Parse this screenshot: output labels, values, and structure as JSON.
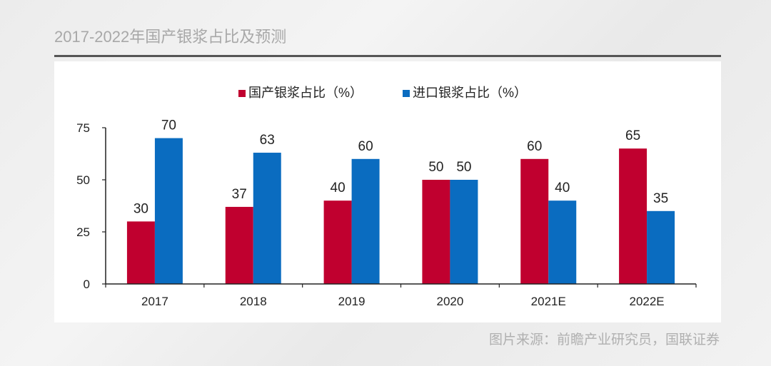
{
  "page": {
    "title": "2017-2022年国产银浆占比及预测",
    "source": "图片来源：前瞻产业研究员，国联证券"
  },
  "colors": {
    "domestic": "#c0002f",
    "import": "#0a6cc0",
    "axis": "#222222"
  },
  "chart_data": {
    "type": "bar",
    "title": "",
    "xlabel": "",
    "ylabel": "",
    "categories": [
      "2017",
      "2018",
      "2019",
      "2020",
      "2021E",
      "2022E"
    ],
    "series": [
      {
        "name": "国产银浆占比（%）",
        "values": [
          30,
          37,
          40,
          50,
          60,
          65
        ]
      },
      {
        "name": "进口银浆占比（%）",
        "values": [
          70,
          63,
          60,
          50,
          40,
          35
        ]
      }
    ],
    "yticks": [
      "0",
      "25",
      "50",
      "75"
    ],
    "ylim": [
      0,
      75
    ],
    "grid": false,
    "legend": "top-center",
    "data_labels": true
  }
}
